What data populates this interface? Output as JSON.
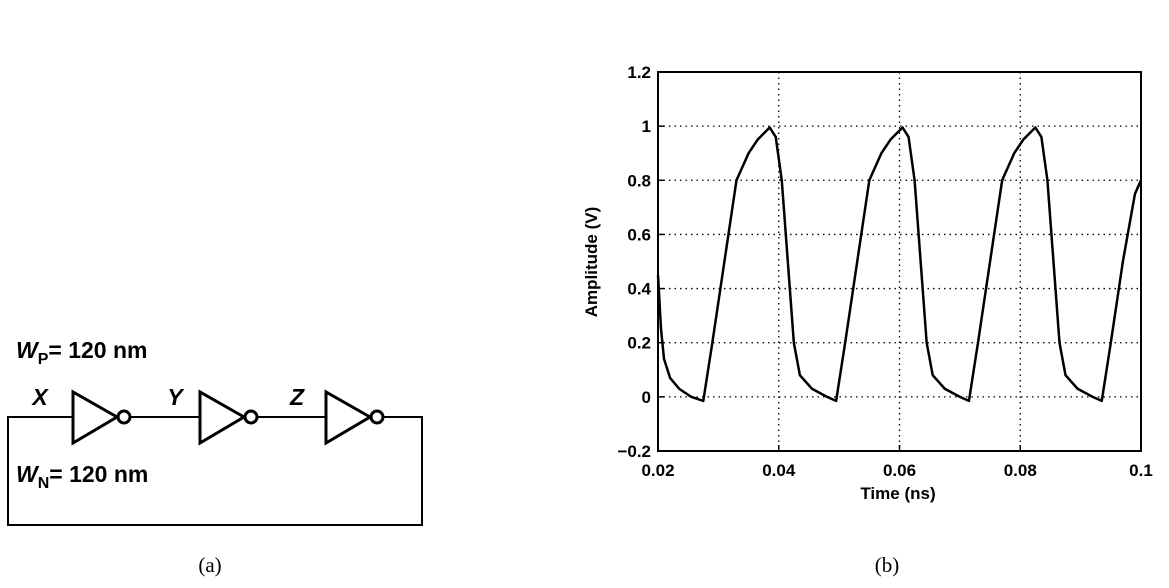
{
  "diagram": {
    "wp": {
      "symbol": "W",
      "sub": "P",
      "text": "= 120 nm"
    },
    "wn": {
      "symbol": "W",
      "sub": "N",
      "text": "= 120 nm"
    },
    "nodes": [
      "X",
      "Y",
      "Z"
    ],
    "caption": "(a)"
  },
  "chart_data": {
    "type": "line",
    "xlabel": "Time (ns)",
    "ylabel": "Amplitude (V)",
    "caption": "(b)",
    "x": [
      0.02,
      0.0205,
      0.021,
      0.022,
      0.0235,
      0.0255,
      0.0275,
      0.029,
      0.031,
      0.033,
      0.035,
      0.0365,
      0.0385,
      0.0395,
      0.0405,
      0.0415,
      0.0425,
      0.0435,
      0.0455,
      0.048,
      0.0495,
      0.051,
      0.053,
      0.055,
      0.057,
      0.0585,
      0.0605,
      0.0615,
      0.0625,
      0.0635,
      0.0645,
      0.0655,
      0.0675,
      0.07,
      0.0715,
      0.073,
      0.075,
      0.077,
      0.079,
      0.0805,
      0.0825,
      0.0835,
      0.0845,
      0.0855,
      0.0865,
      0.0875,
      0.0895,
      0.092,
      0.0935,
      0.095,
      0.097,
      0.099,
      0.1
    ],
    "series": [
      {
        "color": "#000000",
        "values": [
          0.45,
          0.25,
          0.14,
          0.07,
          0.03,
          0.0,
          -0.015,
          0.2,
          0.5,
          0.8,
          0.9,
          0.95,
          0.995,
          0.96,
          0.8,
          0.5,
          0.2,
          0.08,
          0.03,
          0.0,
          -0.015,
          0.2,
          0.5,
          0.8,
          0.9,
          0.95,
          0.995,
          0.96,
          0.8,
          0.5,
          0.2,
          0.08,
          0.03,
          0.0,
          -0.015,
          0.2,
          0.5,
          0.8,
          0.9,
          0.95,
          0.995,
          0.96,
          0.8,
          0.5,
          0.2,
          0.08,
          0.03,
          0.0,
          -0.015,
          0.2,
          0.5,
          0.75,
          0.8
        ]
      }
    ],
    "xlim": [
      0.02,
      0.1
    ],
    "ylim": [
      -0.2,
      1.2
    ],
    "xticks": [
      0.02,
      0.04,
      0.06,
      0.08,
      0.1
    ],
    "yticks": [
      {
        "value": -0.2,
        "label": "−0.2"
      },
      0,
      0.2,
      0.4,
      0.6,
      0.8,
      1,
      1.2
    ],
    "grid": true
  }
}
